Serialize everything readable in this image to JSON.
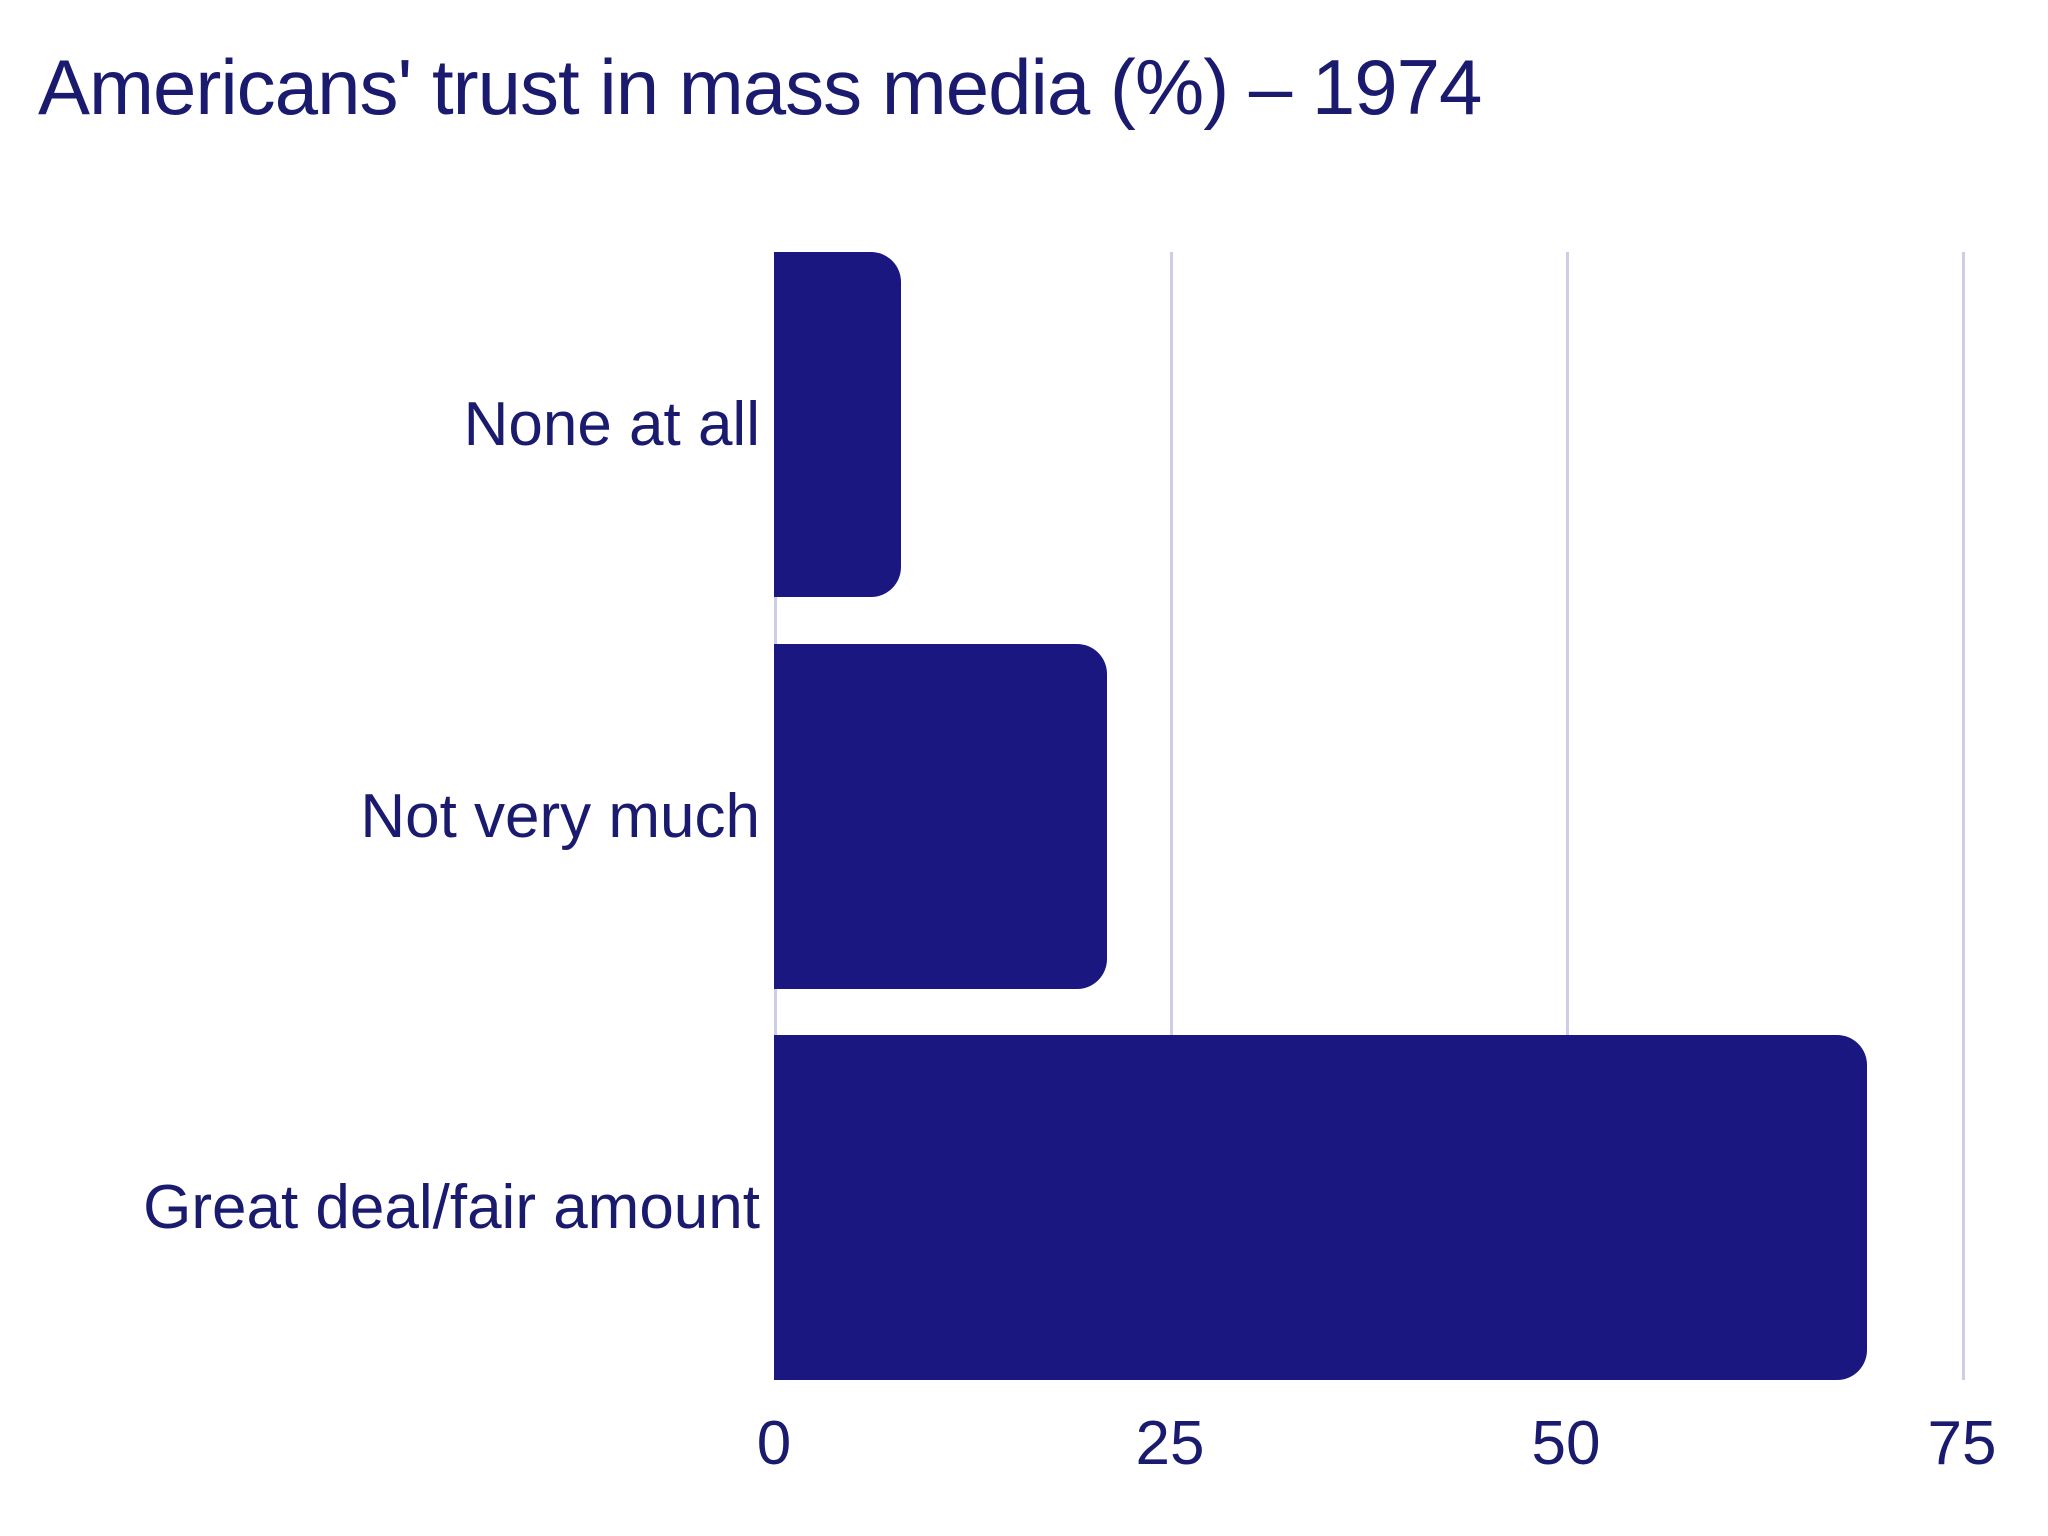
{
  "colors": {
    "bar": "#1a1880",
    "text": "#1a1a6e",
    "gridline": "#cdcde6",
    "background": "#ffffff"
  },
  "chart_data": {
    "type": "bar",
    "orientation": "horizontal",
    "title": "Americans' trust in mass media (%) – 1974",
    "categories": [
      "None at all",
      "Not very much",
      "Great deal/fair amount"
    ],
    "values": [
      8,
      21,
      69
    ],
    "xticks": [
      0,
      25,
      50,
      75
    ],
    "xlim": [
      0,
      78
    ],
    "xlabel": "",
    "ylabel": "",
    "grid": true,
    "legend": false,
    "value_unit": "%"
  }
}
